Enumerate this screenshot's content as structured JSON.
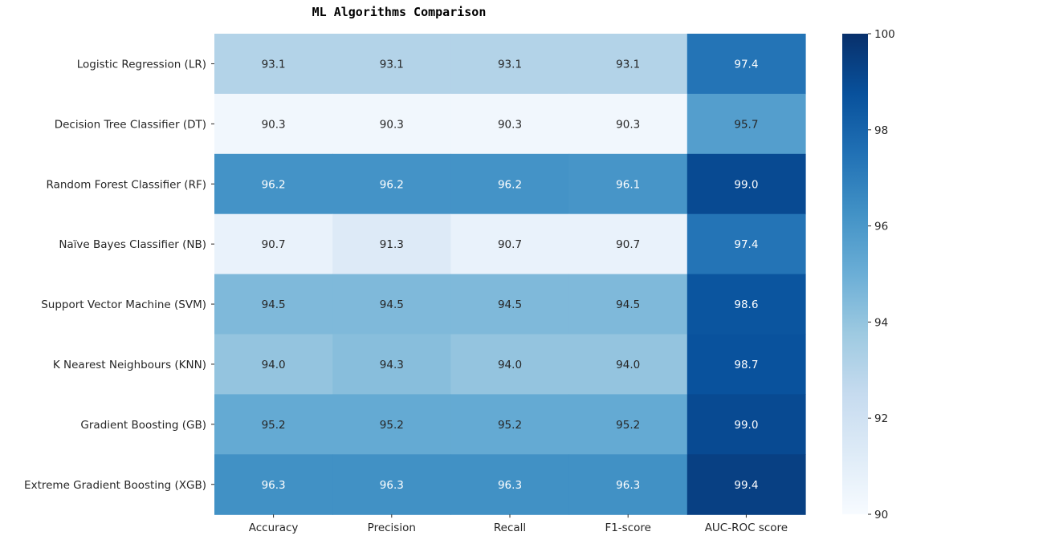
{
  "chart_data": {
    "type": "heatmap",
    "title": "ML Algorithms Comparison",
    "rows": [
      "Logistic Regression (LR)",
      "Decision Tree Classifier (DT)",
      "Random Forest Classifier (RF)",
      "Naïve Bayes Classifier (NB)",
      "Support Vector Machine (SVM)",
      "K Nearest Neighbours (KNN)",
      "Gradient Boosting (GB)",
      "Extreme Gradient Boosting (XGB)"
    ],
    "columns": [
      "Accuracy",
      "Precision",
      "Recall",
      "F1-score",
      "AUC-ROC score"
    ],
    "values": [
      [
        93.1,
        93.1,
        93.1,
        93.1,
        97.4
      ],
      [
        90.3,
        90.3,
        90.3,
        90.3,
        95.7
      ],
      [
        96.2,
        96.2,
        96.2,
        96.1,
        99.0
      ],
      [
        90.7,
        91.3,
        90.7,
        90.7,
        97.4
      ],
      [
        94.5,
        94.5,
        94.5,
        94.5,
        98.6
      ],
      [
        94.0,
        94.3,
        94.0,
        94.0,
        98.7
      ],
      [
        95.2,
        95.2,
        95.2,
        95.2,
        99.0
      ],
      [
        96.3,
        96.3,
        96.3,
        96.3,
        99.4
      ]
    ],
    "value_format": "0.0",
    "colormap": "Blues",
    "colorbar": {
      "range": [
        90,
        100
      ],
      "ticks": [
        90,
        92,
        94,
        96,
        98,
        100
      ],
      "position": "right"
    }
  }
}
